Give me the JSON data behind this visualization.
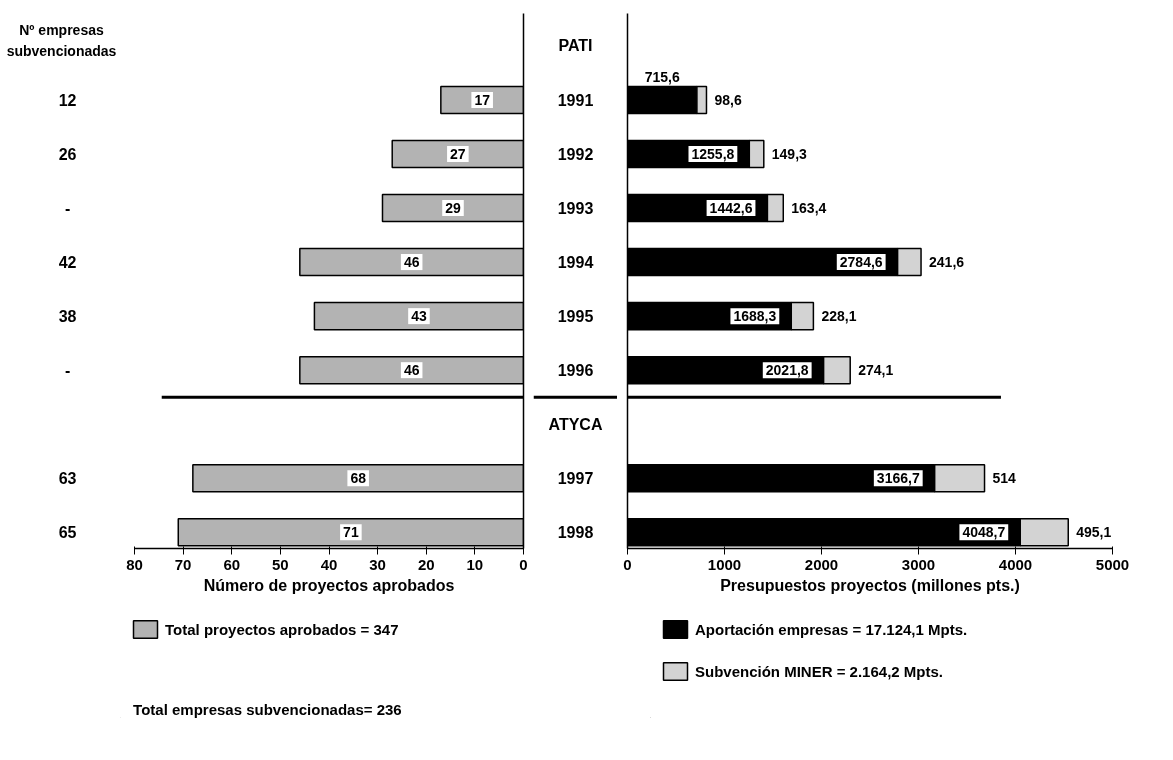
{
  "chart_data": [
    {
      "type": "bar",
      "orientation": "horizontal",
      "categories": [
        "1991",
        "1992",
        "1993",
        "1994",
        "1995",
        "1996",
        null,
        "1997",
        "1998"
      ],
      "series": [
        {
          "name": "Total proyectos aprobados = 347",
          "color": "#b3b3b3",
          "values": [
            17,
            27,
            29,
            46,
            43,
            46,
            null,
            68,
            71
          ]
        }
      ],
      "data_labels": true,
      "xlim": [
        80,
        0
      ],
      "xticks": [
        80,
        70,
        60,
        50,
        40,
        30,
        20,
        10,
        0
      ],
      "xlabel": "Número de proyectos aprobados",
      "grid": false,
      "legend": "bottom",
      "tick_labels": "x",
      "annotations": [
        "Nº empresas subvencionadas",
        "12",
        "26",
        "-",
        "42",
        "38",
        "-",
        "63",
        "65",
        "Total empresas subvencionadas= 236"
      ]
    },
    {
      "type": "bar",
      "orientation": "horizontal",
      "stacked": true,
      "categories": [
        "1991",
        "1992",
        "1993",
        "1994",
        "1995",
        "1996",
        null,
        "1997",
        "1998"
      ],
      "series": [
        {
          "name": "Aportación empresas = 17.124,1 Mpts.",
          "color": "#000000",
          "values": [
            715.6,
            1255.8,
            1442.6,
            2784.6,
            1688.3,
            2021.8,
            null,
            3166.7,
            4048.7
          ],
          "value_labels": [
            "715,6",
            "1255,8",
            "1442,6",
            "2784,6",
            "1688,3",
            "2021,8",
            null,
            "3166,7",
            "4048,7"
          ]
        },
        {
          "name": "Subvención MINER = 2.164,2 Mpts.",
          "color": "#d3d3d3",
          "values": [
            98.6,
            149.3,
            163.4,
            241.6,
            228.1,
            274.1,
            null,
            514,
            495.1
          ],
          "value_labels": [
            "98,6",
            "149,3",
            "163,4",
            "241,6",
            "228,1",
            "274,1",
            null,
            "514",
            "495,1"
          ]
        }
      ],
      "xlim": [
        0,
        5000
      ],
      "xticks": [
        0,
        1000,
        2000,
        3000,
        4000,
        5000
      ],
      "xlabel": "Presupuestos proyectos (millones pts.)",
      "grid": false,
      "legend": "bottom",
      "tick_labels": "x",
      "annotations": [
        "PATI",
        "ATYCA"
      ]
    }
  ]
}
